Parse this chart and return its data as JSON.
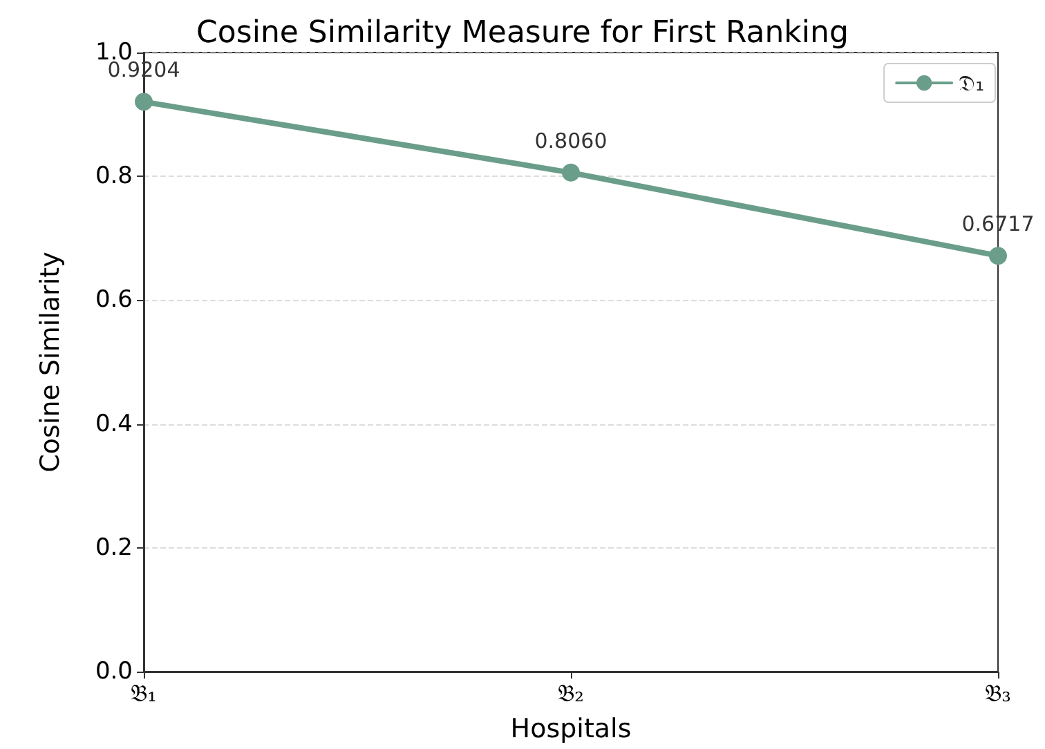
{
  "chart_data": {
    "type": "line",
    "title": "Cosine Similarity Measure for First Ranking",
    "xlabel": "Hospitals",
    "ylabel": "Cosine Similarity",
    "categories": [
      "𝔅₁",
      "𝔅₂",
      "𝔅₃"
    ],
    "series": [
      {
        "name": "𝔇₁",
        "color": "#6a9e8a",
        "values": [
          0.9204,
          0.806,
          0.6717
        ],
        "value_labels": [
          "0.9204",
          "0.8060",
          "0.6717"
        ]
      }
    ],
    "ylim": [
      0,
      1
    ],
    "yticks": [
      {
        "value": 0,
        "label": "0.0"
      },
      {
        "value": 0.2,
        "label": "0.2"
      },
      {
        "value": 0.4,
        "label": "0.4"
      },
      {
        "value": 0.6,
        "label": "0.6"
      },
      {
        "value": 0.8,
        "label": "0.8"
      },
      {
        "value": 1,
        "label": "1.0"
      }
    ],
    "grid": "y",
    "legend": "top right",
    "marker": "circle",
    "line_style": "solid"
  }
}
